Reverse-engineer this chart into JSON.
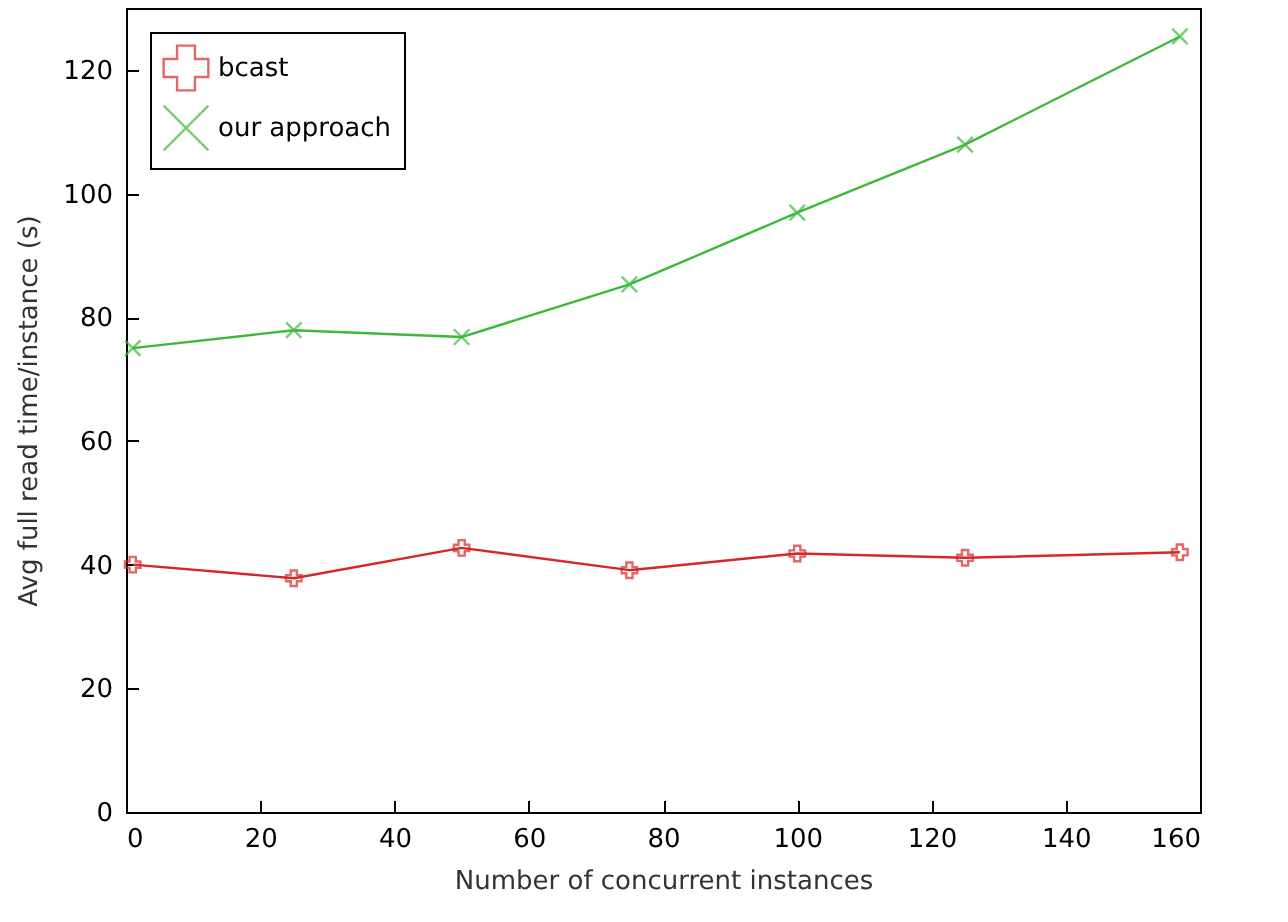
{
  "chart_data": {
    "type": "line",
    "xlabel": "Number of concurrent instances",
    "ylabel": "Avg full read time/instance (s)",
    "xlim": [
      0,
      160
    ],
    "xticks": [
      0,
      20,
      40,
      60,
      80,
      100,
      120,
      140,
      160
    ],
    "ylim": [
      0,
      130
    ],
    "yticks": [
      0,
      20,
      40,
      60,
      80,
      100,
      120
    ],
    "grid": false,
    "legend": "top left",
    "series": [
      {
        "name": "bcast",
        "color": "#d62728",
        "marker": "cross",
        "x": [
          1,
          25,
          50,
          75,
          100,
          125,
          157
        ],
        "values": [
          40,
          37.8,
          42.7,
          39.1,
          41.8,
          41.1,
          42
        ]
      },
      {
        "name": "our approach",
        "color": "#3cb93c",
        "marker": "x",
        "x": [
          1,
          25,
          50,
          75,
          100,
          125,
          157
        ],
        "values": [
          75,
          77.9,
          76.8,
          85.3,
          96.9,
          107.9,
          125.4
        ]
      }
    ]
  }
}
